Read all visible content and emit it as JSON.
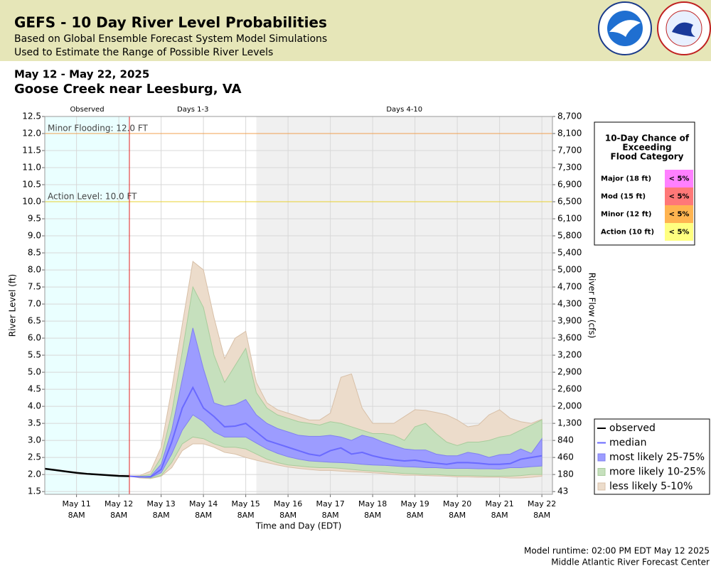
{
  "header": {
    "title": "GEFS - 10 Day River Level Probabilities",
    "subtitle_lines": [
      "Based on Global Ensemble Forecast System Model Simulations",
      "Used to Estimate the Range of Possible River Levels"
    ]
  },
  "footer": {
    "lines": [
      "Model runtime: 02:00 PM EDT May 12 2025",
      "Middle Atlantic River Forecast Center"
    ]
  },
  "chart_data": {
    "type": "line",
    "date_range": "May 12 - May 22, 2025",
    "title": "Goose Creek near Leesburg, VA",
    "y_label": "River Level (ft)",
    "y2_label": "River Flow (cfs)",
    "x_label": "Time and Day (EDT)",
    "xlim": [
      "May 10 2PM",
      "May 22 2PM"
    ],
    "xticks": [
      "May 11 8AM",
      "May 12 8AM",
      "May 13 8AM",
      "May 14 8AM",
      "May 15 8AM",
      "May 16 8AM",
      "May 17 8AM",
      "May 18 8AM",
      "May 19 8AM",
      "May 20 8AM",
      "May 21 8AM",
      "May 22 8AM"
    ],
    "ylim": [
      1.42,
      12.5
    ],
    "yticks": [
      1.5,
      {
        "value": 2,
        "label": "2.0"
      },
      2.5,
      {
        "value": 3,
        "label": "3.0"
      },
      3.5,
      {
        "value": 4,
        "label": "4.0"
      },
      4.5,
      {
        "value": 5,
        "label": "5.0"
      },
      5.5,
      {
        "value": 6,
        "label": "6.0"
      },
      6.5,
      {
        "value": 7,
        "label": "7.0"
      },
      7.5,
      {
        "value": 8,
        "label": "8.0"
      },
      8.5,
      {
        "value": 9,
        "label": "9.0"
      },
      9.5,
      {
        "value": 10,
        "label": "10.0"
      },
      10.5,
      {
        "value": 11,
        "label": "11.0"
      },
      11.5,
      {
        "value": 12,
        "label": "12.0"
      },
      12.5
    ],
    "y2ticks": [
      43,
      180,
      460,
      840,
      {
        "value": 1300,
        "label": "1,300"
      },
      {
        "value": 2000,
        "label": "2,000"
      },
      {
        "value": 2600,
        "label": "2,600"
      },
      {
        "value": 2900,
        "label": "2,900"
      },
      {
        "value": 3200,
        "label": "3,200"
      },
      {
        "value": 3600,
        "label": "3,600"
      },
      {
        "value": 3900,
        "label": "3,900"
      },
      {
        "value": 4300,
        "label": "4,300"
      },
      {
        "value": 4700,
        "label": "4,700"
      },
      {
        "value": 5000,
        "label": "5,000"
      },
      {
        "value": 5400,
        "label": "5,400"
      },
      {
        "value": 5800,
        "label": "5,800"
      },
      {
        "value": 6100,
        "label": "6,100"
      },
      {
        "value": 6500,
        "label": "6,500"
      },
      {
        "value": 6900,
        "label": "6,900"
      },
      {
        "value": 7300,
        "label": "7,300"
      },
      {
        "value": 7700,
        "label": "7,700"
      },
      {
        "value": 8100,
        "label": "8,100"
      },
      {
        "value": 8700,
        "label": "8,700"
      }
    ],
    "grid": true,
    "regions": [
      {
        "label": "Observed",
        "start": "May 10 2PM",
        "end": "May 12 2PM",
        "color": "#eaffff"
      },
      {
        "label": "Days 1-3",
        "start": "May 12 2PM",
        "end": "May 15 2PM",
        "color": "#ffffff"
      },
      {
        "label": "Days 4-10",
        "start": "May 15 2PM",
        "end": "May 22 2PM",
        "color": "#f0f0f0"
      }
    ],
    "thresholds": [
      {
        "label": "Minor Flooding: 12.0 FT",
        "value": 12,
        "color": "#f0a050"
      },
      {
        "label": "Action Level: 10.0 FT",
        "value": 10,
        "color": "#e8d030"
      }
    ],
    "x": [
      "May 12 2PM",
      "May 12 8PM",
      "May 13 2AM",
      "May 13 8AM",
      "May 13 2PM",
      "May 13 8PM",
      "May 14 2AM",
      "May 14 8AM",
      "May 14 2PM",
      "May 14 8PM",
      "May 15 2AM",
      "May 15 8AM",
      "May 15 2PM",
      "May 15 8PM",
      "May 16 2AM",
      "May 16 8AM",
      "May 16 2PM",
      "May 16 8PM",
      "May 17 2AM",
      "May 17 8AM",
      "May 17 2PM",
      "May 17 8PM",
      "May 18 2AM",
      "May 18 8AM",
      "May 18 2PM",
      "May 18 8PM",
      "May 19 2AM",
      "May 19 8AM",
      "May 19 2PM",
      "May 19 8PM",
      "May 20 2AM",
      "May 20 8AM",
      "May 20 2PM",
      "May 20 8PM",
      "May 21 2AM",
      "May 21 8AM",
      "May 21 2PM",
      "May 21 8PM",
      "May 22 2AM",
      "May 22 8AM"
    ],
    "bands": [
      {
        "name": "less likely 5-10%",
        "color": "#ecdccb",
        "edge": "#d8c0a8",
        "lower": [
          1.95,
          1.9,
          1.88,
          1.95,
          2.2,
          2.7,
          2.9,
          2.9,
          2.8,
          2.65,
          2.6,
          2.5,
          2.42,
          2.35,
          2.28,
          2.22,
          2.18,
          2.15,
          2.12,
          2.12,
          2.1,
          2.08,
          2.07,
          2.05,
          2.03,
          2.0,
          1.98,
          1.98,
          1.97,
          1.96,
          1.95,
          1.93,
          1.93,
          1.92,
          1.92,
          1.92,
          1.9,
          1.9,
          1.92,
          1.95
        ],
        "upper": [
          1.95,
          1.97,
          2.1,
          2.8,
          4.5,
          6.4,
          8.25,
          8.0,
          6.6,
          5.4,
          6.0,
          6.2,
          4.7,
          4.1,
          3.9,
          3.8,
          3.7,
          3.6,
          3.6,
          3.8,
          4.85,
          4.95,
          3.95,
          3.5,
          3.5,
          3.5,
          3.7,
          3.9,
          3.88,
          3.82,
          3.75,
          3.6,
          3.4,
          3.45,
          3.75,
          3.9,
          3.65,
          3.55,
          3.5,
          3.62
        ]
      },
      {
        "name": "more likely 10-25%",
        "color": "#c6e0bd",
        "edge": "#a8cc9c",
        "lower": [
          1.95,
          1.92,
          1.9,
          1.97,
          2.35,
          2.9,
          3.1,
          3.05,
          2.9,
          2.8,
          2.8,
          2.75,
          2.6,
          2.45,
          2.35,
          2.28,
          2.25,
          2.22,
          2.2,
          2.2,
          2.18,
          2.15,
          2.12,
          2.1,
          2.08,
          2.05,
          2.03,
          2.02,
          2.0,
          2.0,
          1.98,
          1.97,
          1.97,
          1.96,
          1.95,
          1.95,
          1.95,
          1.97,
          2.0,
          2.0
        ],
        "upper": [
          1.95,
          1.95,
          2.0,
          2.5,
          3.8,
          5.6,
          7.5,
          6.9,
          5.5,
          4.7,
          5.2,
          5.7,
          4.4,
          3.95,
          3.75,
          3.65,
          3.55,
          3.5,
          3.45,
          3.55,
          3.5,
          3.4,
          3.3,
          3.2,
          3.2,
          3.15,
          3.0,
          3.4,
          3.5,
          3.2,
          2.95,
          2.85,
          2.95,
          2.95,
          3.0,
          3.1,
          3.15,
          3.3,
          3.45,
          3.6
        ]
      },
      {
        "name": "most likely 25-75%",
        "color": "#9c9cff",
        "edge": "#8080f0",
        "lower": [
          1.95,
          1.92,
          1.92,
          2.05,
          2.6,
          3.3,
          3.75,
          3.55,
          3.25,
          3.1,
          3.1,
          3.1,
          2.92,
          2.75,
          2.62,
          2.52,
          2.45,
          2.4,
          2.38,
          2.36,
          2.35,
          2.33,
          2.3,
          2.28,
          2.27,
          2.25,
          2.23,
          2.22,
          2.2,
          2.2,
          2.18,
          2.18,
          2.18,
          2.17,
          2.17,
          2.16,
          2.2,
          2.2,
          2.23,
          2.25
        ],
        "upper": [
          1.95,
          1.93,
          1.95,
          2.3,
          3.3,
          4.8,
          6.3,
          5.1,
          4.1,
          4.0,
          4.05,
          4.2,
          3.75,
          3.5,
          3.35,
          3.25,
          3.15,
          3.12,
          3.12,
          3.15,
          3.1,
          3.0,
          3.15,
          3.08,
          2.95,
          2.85,
          2.75,
          2.72,
          2.72,
          2.6,
          2.55,
          2.55,
          2.65,
          2.6,
          2.5,
          2.58,
          2.6,
          2.75,
          2.62,
          3.05
        ]
      }
    ],
    "series": [
      {
        "name": "observed",
        "color": "#000000",
        "x": [
          "May 10 2PM",
          "May 10 8PM",
          "May 11 2AM",
          "May 11 8AM",
          "May 11 2PM",
          "May 11 8PM",
          "May 12 2AM",
          "May 12 8AM",
          "May 12 2PM"
        ],
        "values": [
          2.17,
          2.13,
          2.09,
          2.05,
          2.02,
          2.0,
          1.98,
          1.96,
          1.95
        ]
      },
      {
        "name": "median",
        "color": "#6a6aff",
        "values": [
          1.95,
          1.93,
          1.93,
          2.15,
          2.95,
          3.95,
          4.55,
          3.95,
          3.7,
          3.4,
          3.42,
          3.5,
          3.25,
          3.0,
          2.9,
          2.8,
          2.7,
          2.6,
          2.55,
          2.7,
          2.78,
          2.6,
          2.65,
          2.55,
          2.48,
          2.43,
          2.4,
          2.42,
          2.37,
          2.33,
          2.3,
          2.35,
          2.35,
          2.33,
          2.3,
          2.3,
          2.32,
          2.45,
          2.5,
          2.55
        ]
      }
    ],
    "flood_table": {
      "title_lines": [
        "10-Day Chance of",
        "Exceeding",
        "Flood Category"
      ],
      "rows": [
        {
          "category": "Major (18 ft)",
          "chance": "< 5%",
          "color": "#ff80ff"
        },
        {
          "category": "Mod (15 ft)",
          "chance": "< 5%",
          "color": "#ff7878"
        },
        {
          "category": "Minor (12 ft)",
          "chance": "< 5%",
          "color": "#ffb450"
        },
        {
          "category": "Action (10 ft)",
          "chance": "< 5%",
          "color": "#ffff80"
        }
      ]
    }
  }
}
